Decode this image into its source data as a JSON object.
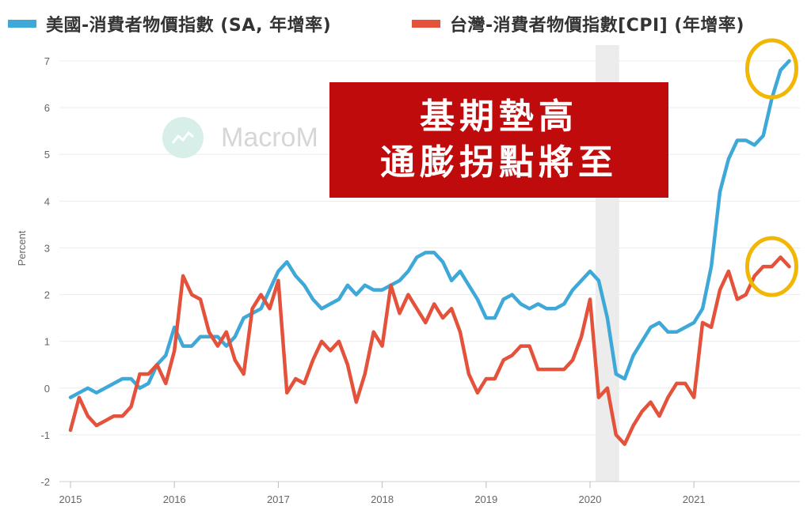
{
  "legend": {
    "series_1": "美國-消費者物價指數 (SA, 年增率)",
    "series_2": "台灣-消費者物價指數[CPI] (年增率)"
  },
  "banner": {
    "line_1": "基期墊高",
    "line_2": "通膨拐點將至"
  },
  "watermark": {
    "text": "MacroM"
  },
  "colors": {
    "us": "#3ea8d8",
    "tw": "#e4523b",
    "banner": "#bf0b0b",
    "highlight_circle": "#f2b705",
    "recession_shade": "#ececec"
  },
  "chart_data": {
    "type": "line",
    "ylabel": "Percent",
    "xlabel": "",
    "ylim": [
      -2,
      7
    ],
    "yticks": [
      "-2",
      "-1",
      "0",
      "1",
      "2",
      "3",
      "4",
      "5",
      "6",
      "7"
    ],
    "xticks": [
      "2015",
      "2016",
      "2017",
      "2018",
      "2019",
      "2020",
      "2021"
    ],
    "x_start": "2015-01",
    "x_end": "2021-12",
    "frequency": "monthly",
    "shaded_period": [
      "2020-02",
      "2020-04"
    ],
    "highlighted_points": [
      "2021-12 美國",
      "2021-12 台灣"
    ],
    "grid": "horizontal",
    "legend_position": "top",
    "series": [
      {
        "name": "美國-消費者物價指數 (SA, 年增率)",
        "color": "#3ea8d8",
        "values": [
          -0.2,
          -0.1,
          0.0,
          -0.1,
          0.0,
          0.1,
          0.2,
          0.2,
          0.0,
          0.1,
          0.5,
          0.7,
          1.3,
          0.9,
          0.9,
          1.1,
          1.1,
          1.1,
          0.9,
          1.1,
          1.5,
          1.6,
          1.7,
          2.1,
          2.5,
          2.7,
          2.4,
          2.2,
          1.9,
          1.7,
          1.8,
          1.9,
          2.2,
          2.0,
          2.2,
          2.1,
          2.1,
          2.2,
          2.3,
          2.5,
          2.8,
          2.9,
          2.9,
          2.7,
          2.3,
          2.5,
          2.2,
          1.9,
          1.5,
          1.5,
          1.9,
          2.0,
          1.8,
          1.7,
          1.8,
          1.7,
          1.7,
          1.8,
          2.1,
          2.3,
          2.5,
          2.3,
          1.5,
          0.3,
          0.2,
          0.7,
          1.0,
          1.3,
          1.4,
          1.2,
          1.2,
          1.3,
          1.4,
          1.7,
          2.6,
          4.2,
          4.9,
          5.3,
          5.3,
          5.2,
          5.4,
          6.2,
          6.8,
          7.0
        ]
      },
      {
        "name": "台灣-消費者物價指數[CPI] (年增率)",
        "color": "#e4523b",
        "values": [
          -0.9,
          -0.2,
          -0.6,
          -0.8,
          -0.7,
          -0.6,
          -0.6,
          -0.4,
          0.3,
          0.3,
          0.5,
          0.1,
          0.8,
          2.4,
          2.0,
          1.9,
          1.2,
          0.9,
          1.2,
          0.6,
          0.3,
          1.7,
          2.0,
          1.7,
          2.3,
          -0.1,
          0.2,
          0.1,
          0.6,
          1.0,
          0.8,
          1.0,
          0.5,
          -0.3,
          0.3,
          1.2,
          0.9,
          2.2,
          1.6,
          2.0,
          1.7,
          1.4,
          1.8,
          1.5,
          1.7,
          1.2,
          0.3,
          -0.1,
          0.2,
          0.2,
          0.6,
          0.7,
          0.9,
          0.9,
          0.4,
          0.4,
          0.4,
          0.4,
          0.6,
          1.1,
          1.9,
          -0.2,
          0.0,
          -1.0,
          -1.2,
          -0.8,
          -0.5,
          -0.3,
          -0.6,
          -0.2,
          0.1,
          0.1,
          -0.2,
          1.4,
          1.3,
          2.1,
          2.5,
          1.9,
          2.0,
          2.4,
          2.6,
          2.6,
          2.8,
          2.6
        ]
      }
    ]
  }
}
